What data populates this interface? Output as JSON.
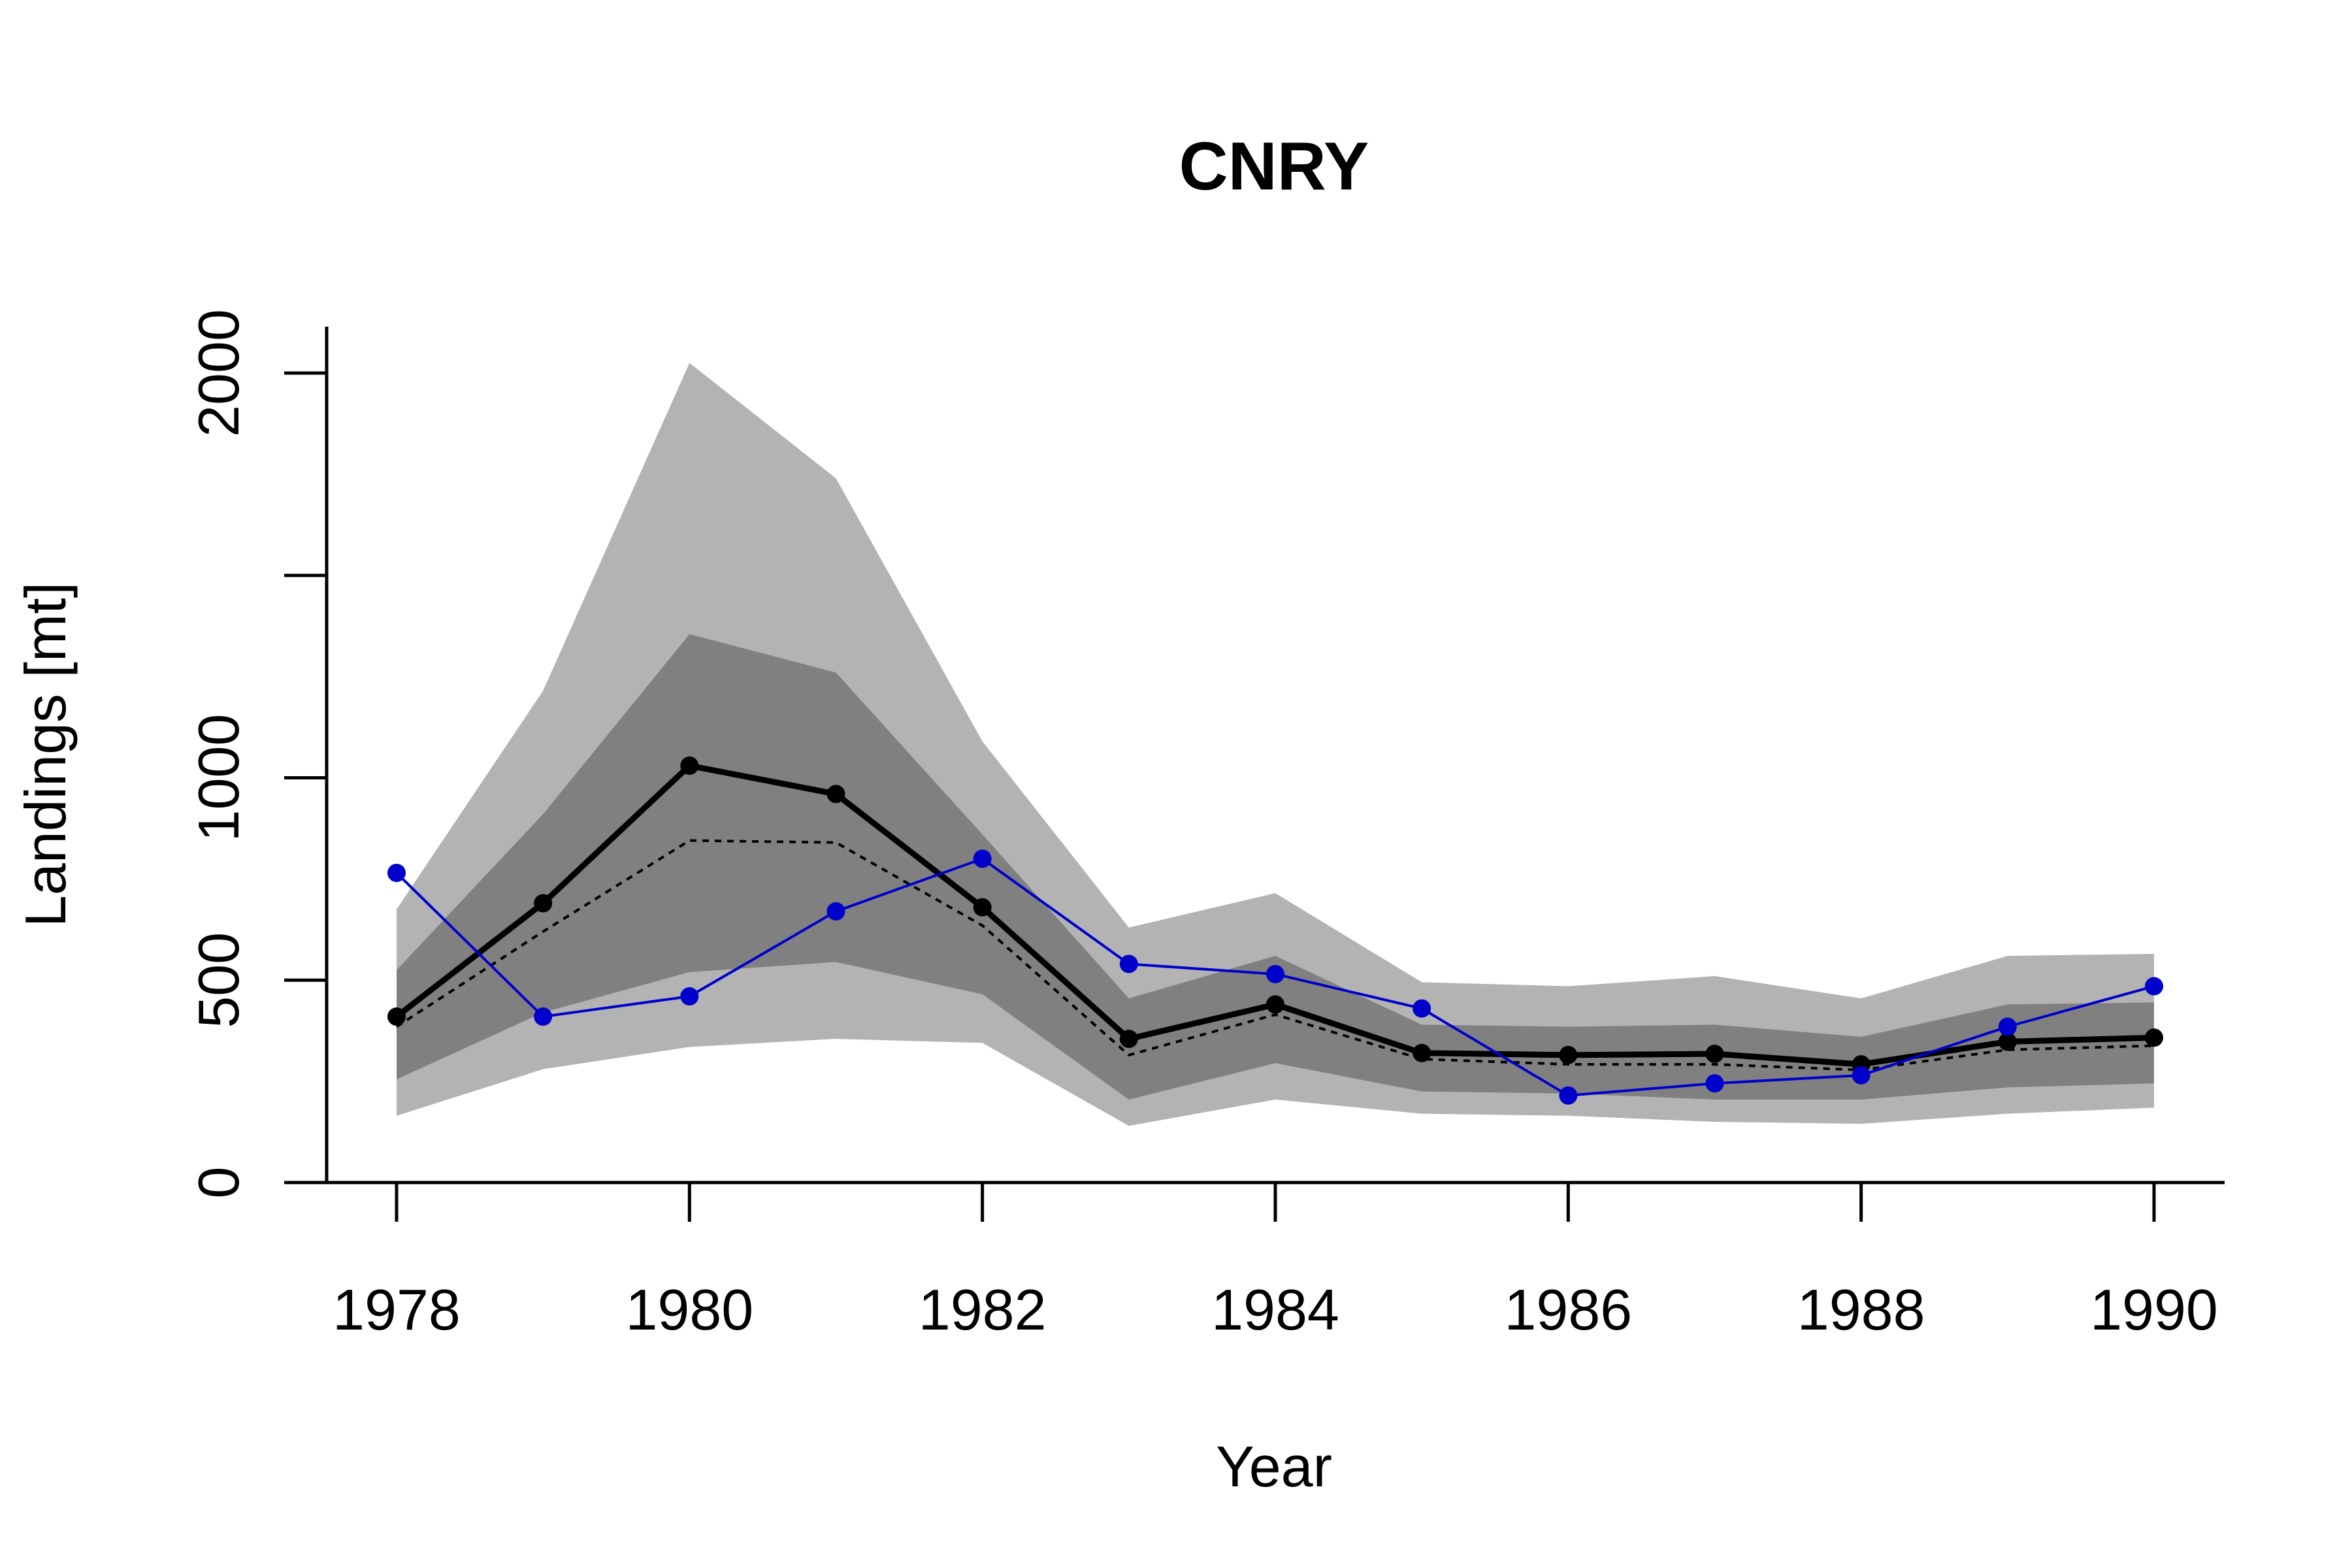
{
  "chart_data": {
    "type": "line",
    "title": "CNRY",
    "xlabel": "Year",
    "ylabel": "Landings [mt]",
    "xlim": [
      1977.5,
      1990.5
    ],
    "ylim": [
      0,
      2100
    ],
    "x_ticks": [
      1978,
      1980,
      1982,
      1984,
      1986,
      1988,
      1990
    ],
    "y_ticks": [
      0,
      500,
      1000,
      1500,
      2000
    ],
    "y_tick_labels": [
      "0",
      "500",
      "1000",
      "",
      "2000"
    ],
    "x": [
      1978,
      1979,
      1980,
      1981,
      1982,
      1983,
      1984,
      1985,
      1986,
      1987,
      1988,
      1989,
      1990
    ],
    "bands": [
      {
        "lower": [
          165,
          280,
          335,
          355,
          345,
          140,
          205,
          170,
          165,
          150,
          145,
          170,
          185
        ],
        "upper": [
          675,
          1215,
          2025,
          1740,
          1090,
          630,
          715,
          495,
          485,
          510,
          455,
          560,
          565
        ],
        "color": "#b3b3b3"
      },
      {
        "lower": [
          255,
          420,
          520,
          545,
          465,
          205,
          295,
          225,
          220,
          205,
          205,
          235,
          245
        ],
        "upper": [
          525,
          910,
          1355,
          1260,
          860,
          455,
          560,
          390,
          385,
          390,
          360,
          440,
          445
        ],
        "color": "#808080"
      }
    ],
    "series": [
      {
        "values": [
          410,
          690,
          1030,
          960,
          680,
          355,
          440,
          320,
          315,
          318,
          292,
          348,
          358
        ],
        "color": "#000000",
        "style": "solid-thick",
        "markers": true
      },
      {
        "values": [
          385,
          620,
          845,
          840,
          635,
          315,
          415,
          305,
          292,
          292,
          278,
          328,
          338
        ],
        "color": "#000000",
        "style": "dotted",
        "markers": false
      },
      {
        "values": [
          765,
          410,
          460,
          670,
          800,
          540,
          515,
          430,
          215,
          245,
          265,
          385,
          485
        ],
        "color": "#0000cc",
        "style": "solid-thin",
        "markers": true
      }
    ]
  }
}
